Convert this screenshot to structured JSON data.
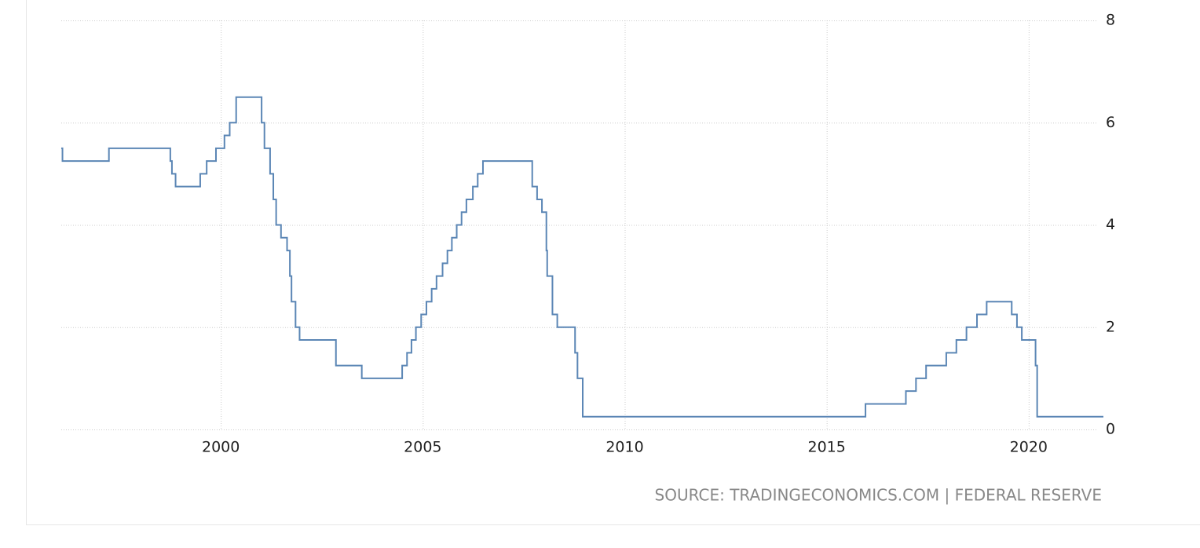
{
  "chart_data": {
    "type": "line",
    "step": true,
    "x": [
      1996.05,
      1996.08,
      1997.23,
      1998.75,
      1998.79,
      1998.88,
      1999.49,
      1999.65,
      1999.88,
      2000.09,
      2000.22,
      2000.38,
      2001.01,
      2001.08,
      2001.22,
      2001.3,
      2001.37,
      2001.49,
      2001.64,
      2001.71,
      2001.75,
      2001.85,
      2001.95,
      2002.85,
      2003.49,
      2004.49,
      2004.61,
      2004.72,
      2004.83,
      2004.96,
      2005.09,
      2005.22,
      2005.34,
      2005.49,
      2005.61,
      2005.72,
      2005.84,
      2005.96,
      2006.08,
      2006.24,
      2006.36,
      2006.49,
      2007.71,
      2007.83,
      2007.95,
      2008.06,
      2008.08,
      2008.21,
      2008.33,
      2008.77,
      2008.83,
      2008.96,
      2015.96,
      2016.96,
      2017.21,
      2017.46,
      2017.96,
      2018.21,
      2018.46,
      2018.72,
      2018.96,
      2019.58,
      2019.71,
      2019.83,
      2020.17,
      2020.21,
      2021.85
    ],
    "series": [
      {
        "color": "#5b86b5",
        "values": [
          5.5,
          5.25,
          5.5,
          5.25,
          5.0,
          4.75,
          5.0,
          5.25,
          5.5,
          5.75,
          6.0,
          6.5,
          6.0,
          5.5,
          5.0,
          4.5,
          4.0,
          3.75,
          3.5,
          3.0,
          2.5,
          2.0,
          1.75,
          1.25,
          1.0,
          1.25,
          1.5,
          1.75,
          2.0,
          2.25,
          2.5,
          2.75,
          3.0,
          3.25,
          3.5,
          3.75,
          4.0,
          4.25,
          4.5,
          4.75,
          5.0,
          5.25,
          4.75,
          4.5,
          4.25,
          3.5,
          3.0,
          2.25,
          2.0,
          1.5,
          1.0,
          0.25,
          0.5,
          0.75,
          1.0,
          1.25,
          1.5,
          1.75,
          2.0,
          2.25,
          2.5,
          2.25,
          2.0,
          1.75,
          1.25,
          0.25,
          0.25
        ]
      }
    ],
    "xlim": [
      1996.05,
      2021.85
    ],
    "xticks": [
      2000,
      2005,
      2010,
      2015,
      2020
    ],
    "ylim": [
      0,
      8
    ],
    "yticks": [
      0,
      2,
      4,
      6,
      8
    ],
    "grid": true,
    "source": "SOURCE: TRADINGECONOMICS.COM | FEDERAL RESERVE"
  }
}
